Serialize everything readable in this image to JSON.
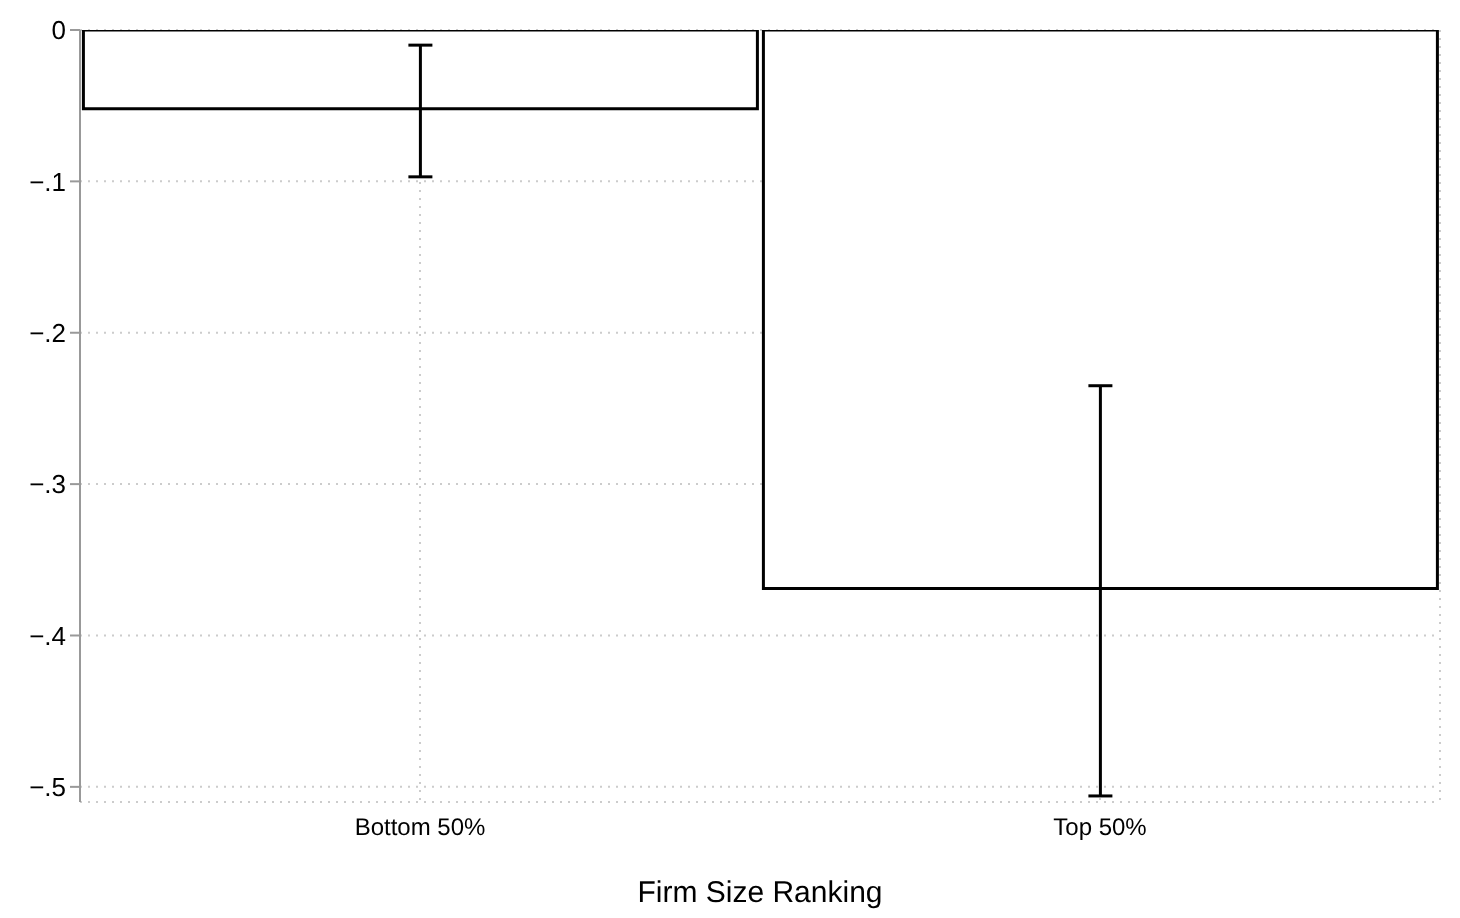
{
  "chart_data": {
    "type": "bar",
    "xlabel": "Firm Size Ranking",
    "categories": [
      "Bottom 50%",
      "Top 50%"
    ],
    "values": [
      -0.052,
      -0.369
    ],
    "errors": [
      [
        -0.097,
        -0.01
      ],
      [
        -0.506,
        -0.235
      ]
    ],
    "color": "#ffffff",
    "ylim": [
      -0.51,
      0
    ],
    "yticks": [
      {
        "value": -0.5,
        "label": "−.5"
      },
      {
        "value": -0.4,
        "label": "−.4"
      },
      {
        "value": -0.3,
        "label": "−.3"
      },
      {
        "value": -0.2,
        "label": "−.2"
      },
      {
        "value": -0.1,
        "label": "−.1"
      },
      0
    ],
    "grid": true
  }
}
